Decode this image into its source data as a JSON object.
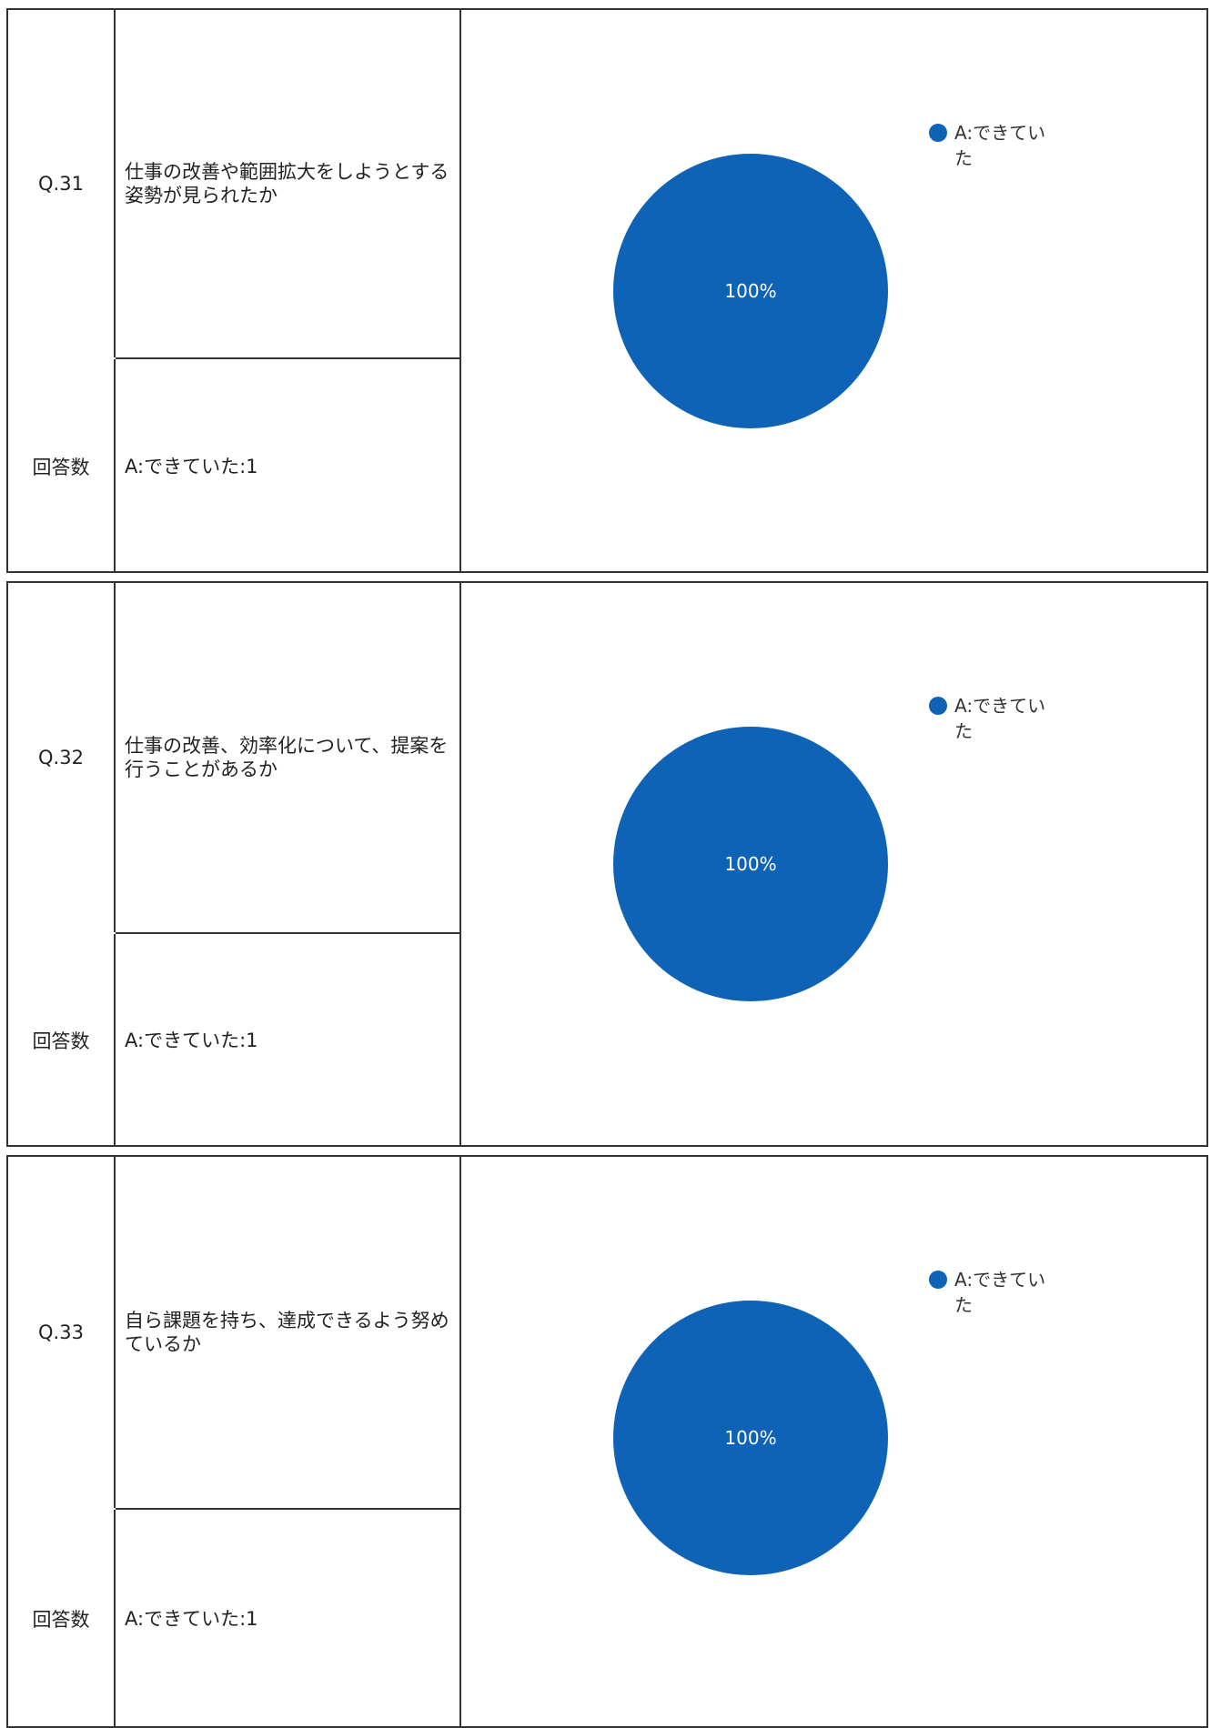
{
  "colors": {
    "slice": "#0f63b7"
  },
  "questions": [
    {
      "number": "Q.31",
      "text": "仕事の改善や範囲拡大をしようとする姿勢が見られたか",
      "count_label": "回答数",
      "count_value": "A:できていた:1"
    },
    {
      "number": "Q.32",
      "text": "仕事の改善、効率化について、提案を行うことがあるか",
      "count_label": "回答数",
      "count_value": "A:できていた:1"
    },
    {
      "number": "Q.33",
      "text": "自ら課題を持ち、達成できるよう努めているか",
      "count_label": "回答数",
      "count_value": "A:できていた:1"
    }
  ],
  "chart_data": [
    {
      "type": "pie",
      "categories": [
        "A:できていた"
      ],
      "values": [
        1
      ],
      "data_labels": [
        "100%"
      ],
      "legend_lines": [
        "A:できてい",
        "た"
      ],
      "legend": "top-right"
    },
    {
      "type": "pie",
      "categories": [
        "A:できていた"
      ],
      "values": [
        1
      ],
      "data_labels": [
        "100%"
      ],
      "legend_lines": [
        "A:できてい",
        "た"
      ],
      "legend": "top-right"
    },
    {
      "type": "pie",
      "categories": [
        "A:できていた"
      ],
      "values": [
        1
      ],
      "data_labels": [
        "100%"
      ],
      "legend_lines": [
        "A:できてい",
        "た"
      ],
      "legend": "top-right"
    }
  ]
}
